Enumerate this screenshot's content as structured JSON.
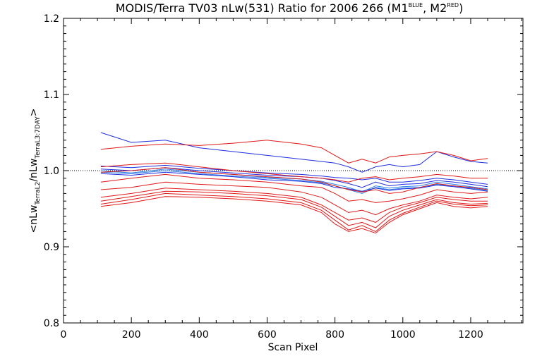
{
  "chart_data": {
    "type": "line",
    "title": {
      "main": "MODIS/Terra TV03 nLw(531) Ratio for 2006 266 (M1",
      "sup1": "BLUE",
      "mid": ", M2",
      "sup2": "RED",
      "end": ")"
    },
    "xlabel": "Scan Pixel",
    "ylabel": {
      "open": "<nLw",
      "sub1": "TerraL2",
      "slash": "/nLw",
      "sub2": "TerraL3:7DAY",
      "close": ">"
    },
    "xlim": [
      0,
      1354
    ],
    "ylim": [
      0.8,
      1.2
    ],
    "xticks": [
      "0",
      "200",
      "400",
      "600",
      "800",
      "1000",
      "1200"
    ],
    "yticks": [
      "0.8",
      "0.9",
      "1.0",
      "1.1",
      "1.2"
    ],
    "reference_line": {
      "y": 1.0,
      "style": "dotted"
    },
    "colors": {
      "blue": "#1e2de0",
      "blue2": "#2f7ee6",
      "red": "#e01818"
    },
    "x": [
      110,
      200,
      300,
      400,
      500,
      600,
      700,
      760,
      800,
      840,
      880,
      920,
      960,
      1000,
      1050,
      1100,
      1150,
      1200,
      1250
    ],
    "series": [
      {
        "color": "blue",
        "values": [
          1.05,
          1.037,
          1.04,
          1.03,
          1.025,
          1.02,
          1.015,
          1.012,
          1.01,
          1.005,
          0.998,
          1.005,
          1.008,
          1.005,
          1.008,
          1.025,
          1.018,
          1.012,
          1.01
        ]
      },
      {
        "color": "blue",
        "values": [
          1.006,
          1.004,
          1.007,
          1.003,
          1.0,
          0.997,
          0.995,
          0.993,
          0.991,
          0.99,
          0.988,
          0.99,
          0.985,
          0.985,
          0.987,
          0.99,
          0.988,
          0.985,
          0.982
        ]
      },
      {
        "color": "blue",
        "values": [
          1.002,
          1.0,
          1.004,
          1.0,
          0.997,
          0.994,
          0.992,
          0.99,
          0.987,
          0.983,
          0.978,
          0.985,
          0.98,
          0.982,
          0.983,
          0.987,
          0.985,
          0.982,
          0.979
        ]
      },
      {
        "color": "blue2",
        "values": [
          1.0,
          0.997,
          1.002,
          0.998,
          0.995,
          0.991,
          0.989,
          0.986,
          0.982,
          0.978,
          0.972,
          0.98,
          0.977,
          0.979,
          0.98,
          0.985,
          0.982,
          0.979,
          0.976
        ]
      },
      {
        "color": "blue2",
        "values": [
          0.998,
          0.996,
          1.0,
          0.996,
          0.993,
          0.99,
          0.987,
          0.984,
          0.98,
          0.975,
          0.97,
          0.978,
          0.975,
          0.977,
          0.978,
          0.982,
          0.98,
          0.977,
          0.974
        ]
      },
      {
        "color": "blue",
        "values": [
          0.996,
          0.994,
          0.998,
          0.995,
          0.992,
          0.988,
          0.986,
          0.983,
          0.978,
          0.976,
          0.973,
          0.977,
          0.974,
          0.976,
          0.977,
          0.981,
          0.979,
          0.976,
          0.973
        ]
      },
      {
        "color": "red",
        "values": [
          1.028,
          1.032,
          1.035,
          1.033,
          1.036,
          1.04,
          1.035,
          1.03,
          1.02,
          1.01,
          1.015,
          1.01,
          1.018,
          1.02,
          1.022,
          1.025,
          1.02,
          1.013,
          1.016
        ]
      },
      {
        "color": "red",
        "values": [
          1.005,
          1.008,
          1.01,
          1.005,
          1.0,
          0.996,
          0.992,
          0.99,
          0.988,
          0.985,
          0.99,
          0.992,
          0.988,
          0.99,
          0.992,
          0.995,
          0.993,
          0.99,
          0.99
        ]
      },
      {
        "color": "red",
        "values": [
          0.998,
          1.0,
          1.004,
          0.998,
          0.995,
          0.992,
          0.989,
          0.985,
          0.98,
          0.975,
          0.972,
          0.975,
          0.97,
          0.972,
          0.978,
          0.983,
          0.98,
          0.978,
          0.975
        ]
      },
      {
        "color": "red",
        "values": [
          0.985,
          0.99,
          0.995,
          0.99,
          0.988,
          0.985,
          0.98,
          0.978,
          0.97,
          0.96,
          0.962,
          0.958,
          0.96,
          0.963,
          0.968,
          0.975,
          0.972,
          0.97,
          0.972
        ]
      },
      {
        "color": "red",
        "values": [
          0.975,
          0.978,
          0.985,
          0.982,
          0.98,
          0.978,
          0.972,
          0.965,
          0.955,
          0.945,
          0.948,
          0.942,
          0.95,
          0.955,
          0.96,
          0.968,
          0.965,
          0.963,
          0.965
        ]
      },
      {
        "color": "red",
        "values": [
          0.965,
          0.97,
          0.977,
          0.975,
          0.973,
          0.97,
          0.965,
          0.955,
          0.945,
          0.935,
          0.938,
          0.932,
          0.945,
          0.952,
          0.958,
          0.965,
          0.962,
          0.96,
          0.96
        ]
      },
      {
        "color": "red",
        "values": [
          0.96,
          0.966,
          0.973,
          0.972,
          0.97,
          0.967,
          0.962,
          0.952,
          0.94,
          0.928,
          0.932,
          0.925,
          0.94,
          0.948,
          0.955,
          0.962,
          0.958,
          0.956,
          0.957
        ]
      },
      {
        "color": "red",
        "values": [
          0.956,
          0.962,
          0.97,
          0.968,
          0.966,
          0.963,
          0.958,
          0.948,
          0.935,
          0.922,
          0.928,
          0.92,
          0.935,
          0.944,
          0.952,
          0.96,
          0.956,
          0.954,
          0.955
        ]
      },
      {
        "color": "red",
        "values": [
          0.953,
          0.958,
          0.966,
          0.965,
          0.963,
          0.96,
          0.955,
          0.945,
          0.93,
          0.92,
          0.924,
          0.918,
          0.932,
          0.942,
          0.95,
          0.958,
          0.953,
          0.951,
          0.953
        ]
      }
    ]
  }
}
